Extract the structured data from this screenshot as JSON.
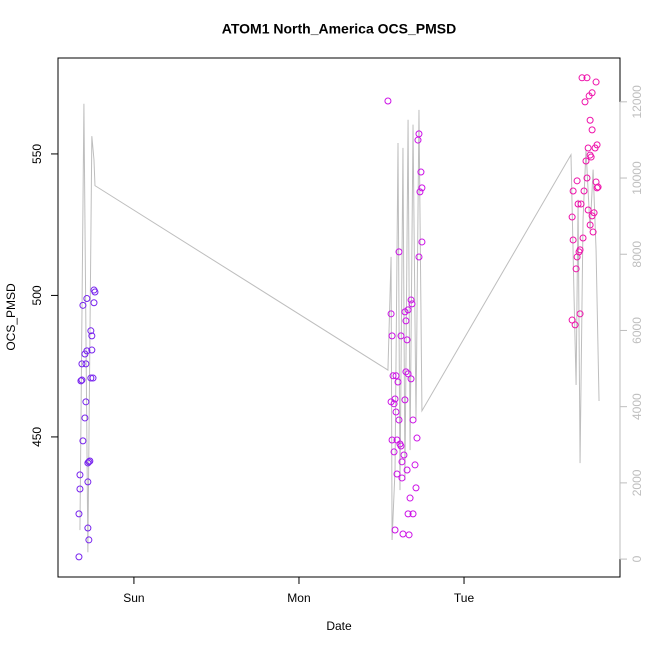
{
  "chart_data": {
    "type": "scatter",
    "title": "ATOM1 North_America OCS_PMSD",
    "xlabel": "Date",
    "ylabel": "OCS_PMSD",
    "xlim": [
      -0.46,
      2.945
    ],
    "ylim": [
      400.5,
      583.9
    ],
    "y2lim": [
      -470,
      13150
    ],
    "xticks": [
      {
        "value": 0,
        "label": "Sun"
      },
      {
        "value": 1,
        "label": "Mon"
      },
      {
        "value": 2,
        "label": "Tue"
      }
    ],
    "yticks": [
      450,
      500,
      550
    ],
    "y2ticks": [
      0,
      2000,
      4000,
      6000,
      8000,
      10000,
      12000
    ],
    "y2color": "#bebebe",
    "series": [
      {
        "type": "scatter",
        "color": "#7722ee",
        "x": [
          -0.333,
          -0.333,
          -0.327,
          -0.327,
          -0.321,
          -0.315,
          -0.315,
          -0.309,
          -0.309,
          -0.297,
          -0.297,
          -0.291,
          -0.285,
          -0.285,
          -0.279,
          -0.279,
          -0.273,
          -0.267,
          -0.261,
          -0.255,
          -0.255,
          -0.248,
          -0.261,
          -0.242,
          -0.236,
          -0.242,
          -0.279,
          -0.273,
          -0.291
        ],
        "values": [
          407.6,
          422.8,
          431.6,
          436.6,
          469.8,
          470.1,
          475.8,
          496.5,
          448.6,
          479.3,
          456.7,
          462.4,
          498.9,
          480.4,
          434.1,
          440.8,
          441.2,
          441.5,
          487.5,
          485.7,
          480.7,
          470.8,
          470.8,
          501.9,
          501.2,
          497.4,
          417.8,
          413.6,
          475.8
        ]
      },
      {
        "type": "scatter",
        "color": "#cc11e6",
        "x": [
          1.539,
          1.558,
          1.558,
          1.564,
          1.564,
          1.57,
          1.576,
          1.576,
          1.582,
          1.582,
          1.588,
          1.588,
          1.594,
          1.594,
          1.6,
          1.606,
          1.606,
          1.612,
          1.618,
          1.618,
          1.624,
          1.624,
          1.63,
          1.636,
          1.642,
          1.642,
          1.648,
          1.648,
          1.655,
          1.655,
          1.661,
          1.661,
          1.667,
          1.673,
          1.679,
          1.679,
          1.685,
          1.691,
          1.691,
          1.703,
          1.709,
          1.715,
          1.721,
          1.727,
          1.727,
          1.733,
          1.739,
          1.745,
          1.745,
          1.661
        ],
        "values": [
          568.7,
          493.5,
          462.4,
          485.7,
          448.9,
          471.6,
          461.7,
          444.7,
          463.4,
          417.1,
          458.8,
          471.6,
          448.9,
          436.9,
          469.4,
          515.4,
          456.0,
          447.5,
          446.8,
          485.7,
          441.2,
          435.5,
          415.7,
          443.6,
          494.2,
          463.1,
          473.0,
          491.0,
          484.3,
          438.3,
          422.8,
          472.3,
          415.4,
          428.4,
          498.4,
          470.5,
          497.0,
          422.8,
          456.0,
          440.1,
          432.0,
          449.6,
          554.9,
          513.6,
          557.1,
          536.6,
          543.6,
          518.9,
          538.0,
          494.9
        ]
      },
      {
        "type": "scatter",
        "color": "#ee11aa",
        "x": [
          2.655,
          2.655,
          2.661,
          2.661,
          2.673,
          2.679,
          2.685,
          2.685,
          2.691,
          2.697,
          2.703,
          2.703,
          2.709,
          2.715,
          2.721,
          2.727,
          2.733,
          2.739,
          2.745,
          2.745,
          2.752,
          2.752,
          2.758,
          2.764,
          2.764,
          2.77,
          2.776,
          2.776,
          2.782,
          2.788,
          2.794,
          2.8,
          2.8,
          2.806,
          2.812,
          2.806,
          2.764,
          2.776
        ],
        "values": [
          527.7,
          491.3,
          536.9,
          519.6,
          489.6,
          509.4,
          540.5,
          513.6,
          532.3,
          515.4,
          516.1,
          493.5,
          532.3,
          576.9,
          520.3,
          536.9,
          568.4,
          547.5,
          541.5,
          576.9,
          552.1,
          530.2,
          570.5,
          549.6,
          561.9,
          548.9,
          571.6,
          528.1,
          522.4,
          529.2,
          552.1,
          540.1,
          575.4,
          538.0,
          538.3,
          553.2,
          524.9,
          558.5
        ]
      },
      {
        "type": "line",
        "axis": "y2",
        "color": "#bebebe",
        "x": [
          -0.327,
          -0.303,
          -0.279,
          -0.255,
          -0.242,
          -0.236,
          1.539,
          1.558,
          1.564,
          1.582,
          1.6,
          1.612,
          1.63,
          1.642,
          1.661,
          1.673,
          1.691,
          1.709,
          1.727,
          1.745,
          2.648,
          2.667,
          2.679,
          2.691,
          2.703,
          2.721,
          2.739,
          2.764,
          2.782,
          2.8,
          2.818
        ],
        "values": [
          760,
          11950,
          180,
          11100,
          10480,
          9800,
          4960,
          7930,
          500,
          2340,
          10920,
          1810,
          10790,
          2070,
          11530,
          2860,
          11400,
          3650,
          11790,
          3890,
          10610,
          6800,
          4570,
          9430,
          2520,
          8900,
          10740,
          8640,
          10220,
          8110,
          4150
        ]
      }
    ]
  }
}
